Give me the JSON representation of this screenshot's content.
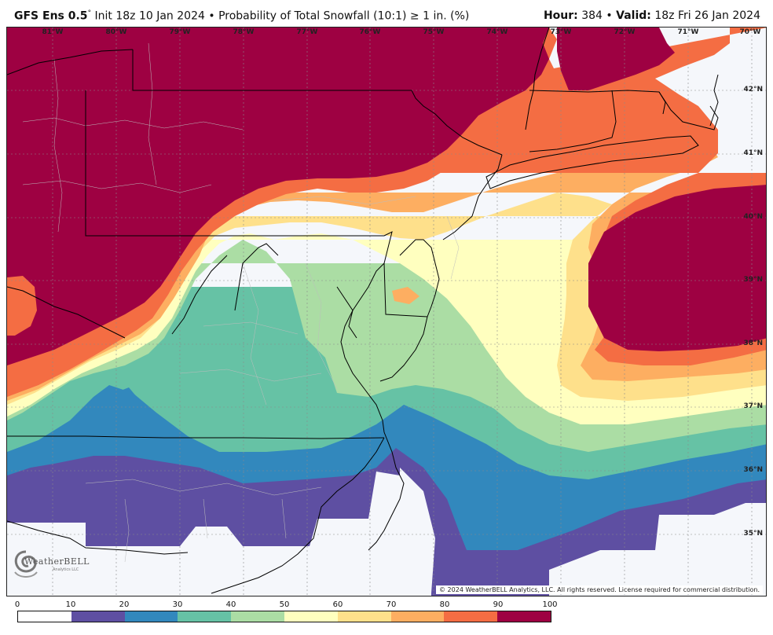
{
  "header": {
    "model": "GFS Ens 0.5",
    "degree": "°",
    "init": "Init 18z 10 Jan 2024",
    "bullet": "•",
    "product": "Probability of Total Snowfall (10:1) ≥ 1 in. (%)",
    "hour_label": "Hour:",
    "hour_value": "384",
    "valid_label": "Valid:",
    "valid_value": "18z Fri 26 Jan 2024"
  },
  "map": {
    "region": "Mid-Atlantic / Northeast United States",
    "lon_labels": [
      "81°W",
      "80°W",
      "79°W",
      "78°W",
      "77°W",
      "76°W",
      "75°W",
      "74°W",
      "73°W",
      "72°W",
      "71°W",
      "70°W"
    ],
    "lat_labels": [
      "42°N",
      "41°N",
      "40°N",
      "39°N",
      "38°N",
      "37°N",
      "36°N",
      "35°N"
    ],
    "copyright": "© 2024 WeatherBELL Analytics, LLC. All rights reserved. License required for commercial distribution.",
    "logo_text": "WeatherBELL",
    "logo_sub": "Analytics LLC",
    "logo_icon": "swirl-logo-icon"
  },
  "colorbar": {
    "ticks": [
      "0",
      "10",
      "20",
      "30",
      "40",
      "50",
      "60",
      "70",
      "80",
      "90",
      "100"
    ],
    "colors": [
      "#ffffff",
      "#5e4fa2",
      "#3288bd",
      "#66c2a5",
      "#abdda4",
      "#ffffbf",
      "#fee08b",
      "#fdae61",
      "#f46d43",
      "#9e0142"
    ],
    "units": "%"
  }
}
